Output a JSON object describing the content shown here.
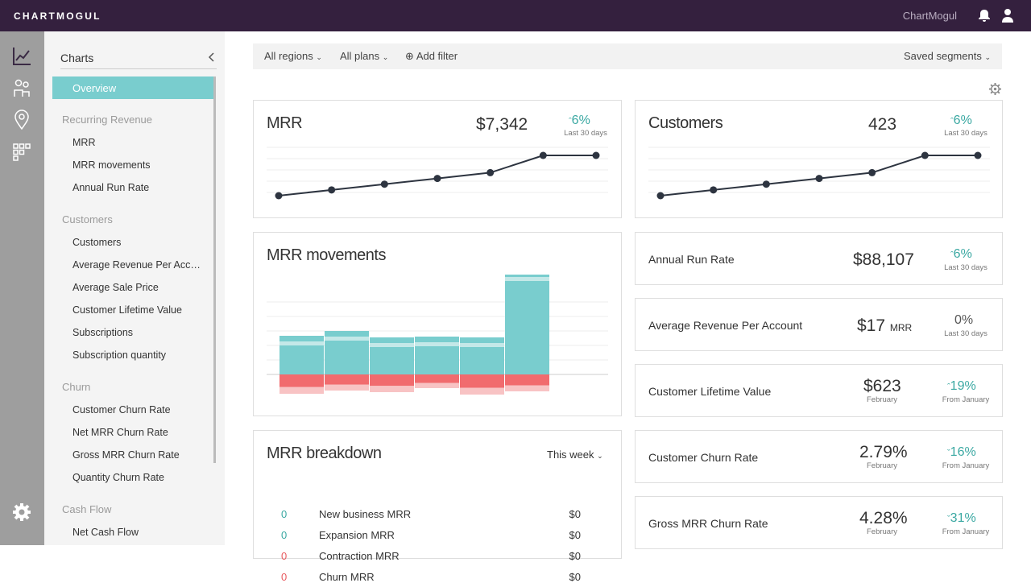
{
  "app": {
    "logo": "CHARTMOGUL",
    "account_name": "ChartMogul"
  },
  "sidebar": {
    "title": "Charts",
    "active": "Overview",
    "sections": [
      {
        "heading": "Recurring Revenue",
        "items": [
          "MRR",
          "MRR movements",
          "Annual Run Rate"
        ]
      },
      {
        "heading": "Customers",
        "items": [
          "Customers",
          "Average Revenue Per Acco…",
          "Average Sale Price",
          "Customer Lifetime Value",
          "Subscriptions",
          "Subscription quantity"
        ]
      },
      {
        "heading": "Churn",
        "items": [
          "Customer Churn Rate",
          "Net MRR Churn Rate",
          "Gross MRR Churn Rate",
          "Quantity Churn Rate"
        ]
      },
      {
        "heading": "Cash Flow",
        "items": [
          "Net Cash Flow"
        ]
      }
    ]
  },
  "filters": {
    "regions": "All regions",
    "plans": "All plans",
    "add": "Add filter",
    "segments": "Saved segments"
  },
  "cards": {
    "mrr": {
      "title": "MRR",
      "value": "$7,342",
      "change": "6%",
      "period": "Last 30 days",
      "series": [
        1,
        2,
        3,
        4,
        5,
        8,
        8
      ]
    },
    "customers": {
      "title": "Customers",
      "value": "423",
      "change": "6%",
      "period": "Last 30 days",
      "series": [
        1,
        2,
        3,
        4,
        5,
        8,
        8
      ]
    },
    "mrr_movements": {
      "title": "MRR movements"
    },
    "arr": {
      "title": "Annual Run Rate",
      "value": "$88,107",
      "change": "6%",
      "period": "Last 30 days"
    },
    "arpa": {
      "title": "Average Revenue Per Account",
      "value": "$17",
      "unit": "MRR",
      "change": "0%",
      "period": "Last 30 days"
    },
    "ltv": {
      "title": "Customer Lifetime Value",
      "value": "$623",
      "value_sub": "February",
      "change": "19%",
      "period": "From January"
    },
    "churn": {
      "title": "Customer Churn Rate",
      "value": "2.79%",
      "value_sub": "February",
      "change": "16%",
      "period": "From January"
    },
    "gross_churn": {
      "title": "Gross MRR Churn Rate",
      "value": "4.28%",
      "value_sub": "February",
      "change": "31%",
      "period": "From January"
    },
    "breakdown": {
      "title": "MRR breakdown",
      "range": "This week",
      "rows": [
        {
          "n": "0",
          "label": "New business MRR",
          "value": "$0",
          "color": "#3aa8a2"
        },
        {
          "n": "0",
          "label": "Expansion MRR",
          "value": "$0",
          "color": "#3aa8a2"
        },
        {
          "n": "0",
          "label": "Contraction MRR",
          "value": "$0",
          "color": "#e8595e"
        },
        {
          "n": "0",
          "label": "Churn MRR",
          "value": "$0",
          "color": "#e8595e"
        }
      ]
    }
  },
  "chart_data": [
    {
      "type": "line",
      "title": "MRR",
      "x": [
        1,
        2,
        3,
        4,
        5,
        6,
        7
      ],
      "values": [
        1,
        2,
        3,
        4,
        5,
        8,
        8
      ]
    },
    {
      "type": "line",
      "title": "Customers",
      "x": [
        1,
        2,
        3,
        4,
        5,
        6,
        7
      ],
      "values": [
        1,
        2,
        3,
        4,
        5,
        8,
        8
      ]
    },
    {
      "type": "bar",
      "title": "MRR movements",
      "series": [
        {
          "name": "positive",
          "values": [
            48,
            54,
            46,
            47,
            46,
            128
          ]
        },
        {
          "name": "negative",
          "values": [
            -21,
            -17,
            -19,
            -14,
            -22,
            -18
          ]
        }
      ]
    }
  ],
  "colors": {
    "topbar": "#34203e",
    "teal": "#79cdce",
    "red": "#f16b6e",
    "accent": "#3aa8a2"
  }
}
